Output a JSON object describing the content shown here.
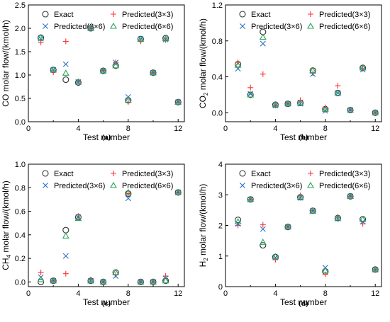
{
  "colors": {
    "exact": "#333333",
    "p3x3": "#ff3333",
    "p3x6": "#2a6fc7",
    "p6x6": "#2aa35a"
  },
  "chart_data": [
    {
      "type": "scatter",
      "panel_label": "(a)",
      "xlabel": "Test number",
      "ylabel": "CO molar flow/(kmol/h)",
      "ylabel_parts": [
        "CO molar flow/(kmol/h)"
      ],
      "xlim": [
        0,
        12.5
      ],
      "ylim": [
        0,
        2.5
      ],
      "xticks": [
        0,
        4,
        8,
        12
      ],
      "yticks": [
        0.0,
        0.5,
        1.0,
        1.5,
        2.0,
        2.5
      ],
      "ytick_labels": [
        "0.0",
        "0.5",
        "1.0",
        "1.5",
        "2.0",
        "2.5"
      ],
      "legend": "top",
      "x": [
        1,
        2,
        3,
        4,
        5,
        6,
        7,
        8,
        9,
        10,
        11,
        12
      ],
      "series": [
        {
          "name": "Exact",
          "marker": "circle",
          "values": [
            1.8,
            1.11,
            0.9,
            0.84,
            2.0,
            1.09,
            1.2,
            0.46,
            1.77,
            1.05,
            1.79,
            0.42
          ]
        },
        {
          "name": "Predicted(3×3)",
          "marker": "plus",
          "values": [
            1.7,
            1.06,
            1.72,
            0.86,
            2.0,
            1.1,
            1.27,
            0.42,
            1.72,
            1.05,
            1.75,
            0.42
          ]
        },
        {
          "name": "Predicted(3×6)",
          "marker": "x",
          "values": [
            1.78,
            1.11,
            1.23,
            0.85,
            2.0,
            1.09,
            1.27,
            0.53,
            1.77,
            1.05,
            1.76,
            0.42
          ]
        },
        {
          "name": "Predicted(6×6)",
          "marker": "triangle",
          "values": [
            1.8,
            1.11,
            1.04,
            0.85,
            2.0,
            1.09,
            1.2,
            0.46,
            1.77,
            1.05,
            1.78,
            0.42
          ]
        }
      ]
    },
    {
      "type": "scatter",
      "panel_label": "(b)",
      "xlabel": "Test number",
      "ylabel": "CO2 molar flow/(kmol/h)",
      "ylabel_parts": [
        "CO",
        "2",
        " molar flow/(kmol/h)"
      ],
      "xlim": [
        0,
        12.5
      ],
      "ylim": [
        -0.1,
        1.2
      ],
      "xticks": [
        0,
        4,
        8,
        12
      ],
      "yticks": [
        0.0,
        0.4,
        0.8,
        1.2
      ],
      "ytick_labels": [
        "0.0",
        "0.4",
        "0.8",
        "1.2"
      ],
      "legend": "top",
      "x": [
        1,
        2,
        3,
        4,
        5,
        6,
        7,
        8,
        9,
        10,
        11,
        12
      ],
      "series": [
        {
          "name": "Exact",
          "marker": "circle",
          "values": [
            0.54,
            0.2,
            0.9,
            0.09,
            0.1,
            0.11,
            0.47,
            0.04,
            0.22,
            0.03,
            0.5,
            0.0
          ]
        },
        {
          "name": "Predicted(3×3)",
          "marker": "plus",
          "values": [
            0.56,
            0.28,
            0.43,
            0.08,
            0.1,
            0.14,
            0.44,
            0.06,
            0.3,
            0.03,
            0.49,
            0.0
          ]
        },
        {
          "name": "Predicted(3×6)",
          "marker": "x",
          "values": [
            0.49,
            0.21,
            0.77,
            0.08,
            0.1,
            0.1,
            0.43,
            0.02,
            0.22,
            0.03,
            0.48,
            0.0
          ]
        },
        {
          "name": "Predicted(6×6)",
          "marker": "triangle",
          "values": [
            0.53,
            0.2,
            0.84,
            0.09,
            0.1,
            0.11,
            0.47,
            0.04,
            0.22,
            0.03,
            0.5,
            0.0
          ]
        }
      ]
    },
    {
      "type": "scatter",
      "panel_label": "(c)",
      "xlabel": "Test number",
      "ylabel": "CH4 molar flow/(kmol/h)",
      "ylabel_parts": [
        "CH",
        "4",
        " molar flow/(kmol/h)"
      ],
      "xlim": [
        0,
        12.5
      ],
      "ylim": [
        -0.04,
        1.0
      ],
      "xticks": [
        0,
        4,
        8,
        12
      ],
      "yticks": [
        0.0,
        0.2,
        0.4,
        0.6,
        0.8,
        1.0
      ],
      "ytick_labels": [
        "0.0",
        "0.2",
        "0.4",
        "0.6",
        "0.8",
        "1.0"
      ],
      "legend": "top",
      "x": [
        1,
        2,
        3,
        4,
        5,
        6,
        7,
        8,
        9,
        10,
        11,
        12
      ],
      "series": [
        {
          "name": "Exact",
          "marker": "circle",
          "values": [
            0.0,
            0.01,
            0.44,
            0.55,
            0.01,
            0.0,
            0.08,
            0.75,
            0.0,
            0.0,
            0.01,
            0.76
          ]
        },
        {
          "name": "Predicted(3×3)",
          "marker": "plus",
          "values": [
            0.08,
            0.01,
            0.07,
            0.56,
            0.02,
            0.0,
            0.06,
            0.75,
            0.0,
            0.0,
            0.05,
            0.76
          ]
        },
        {
          "name": "Predicted(3×6)",
          "marker": "x",
          "values": [
            0.04,
            0.01,
            0.22,
            0.55,
            0.01,
            0.0,
            0.05,
            0.71,
            0.0,
            0.0,
            0.03,
            0.76
          ]
        },
        {
          "name": "Predicted(6×6)",
          "marker": "triangle",
          "values": [
            0.02,
            0.01,
            0.39,
            0.54,
            0.01,
            0.0,
            0.08,
            0.76,
            0.0,
            0.0,
            0.01,
            0.76
          ]
        }
      ]
    },
    {
      "type": "scatter",
      "panel_label": "(d)",
      "xlabel": "Test number",
      "ylabel": "H2 molar flow/(kmol/h)",
      "ylabel_parts": [
        "H",
        "2",
        " molar flow/(kmol/h)"
      ],
      "xlim": [
        0,
        12.5
      ],
      "ylim": [
        0,
        4
      ],
      "xticks": [
        0,
        4,
        8,
        12
      ],
      "yticks": [
        0,
        1,
        2,
        3,
        4
      ],
      "ytick_labels": [
        "0",
        "1",
        "2",
        "3",
        "4"
      ],
      "legend": "top",
      "x": [
        1,
        2,
        3,
        4,
        5,
        6,
        7,
        8,
        9,
        10,
        11,
        12
      ],
      "series": [
        {
          "name": "Exact",
          "marker": "circle",
          "values": [
            2.18,
            2.85,
            1.35,
            0.97,
            1.95,
            2.92,
            2.48,
            0.5,
            2.24,
            2.95,
            2.2,
            0.56
          ]
        },
        {
          "name": "Predicted(3×3)",
          "marker": "plus",
          "values": [
            2.0,
            2.85,
            2.02,
            0.88,
            1.95,
            2.98,
            2.48,
            0.4,
            2.28,
            2.95,
            2.05,
            0.56
          ]
        },
        {
          "name": "Predicted(3×6)",
          "marker": "x",
          "values": [
            2.05,
            2.85,
            1.88,
            0.95,
            1.95,
            2.9,
            2.47,
            0.62,
            2.22,
            2.95,
            2.12,
            0.55
          ]
        },
        {
          "name": "Predicted(6×6)",
          "marker": "triangle",
          "values": [
            2.12,
            2.85,
            1.45,
            0.98,
            1.95,
            2.92,
            2.47,
            0.52,
            2.24,
            2.95,
            2.2,
            0.56
          ]
        }
      ]
    }
  ]
}
